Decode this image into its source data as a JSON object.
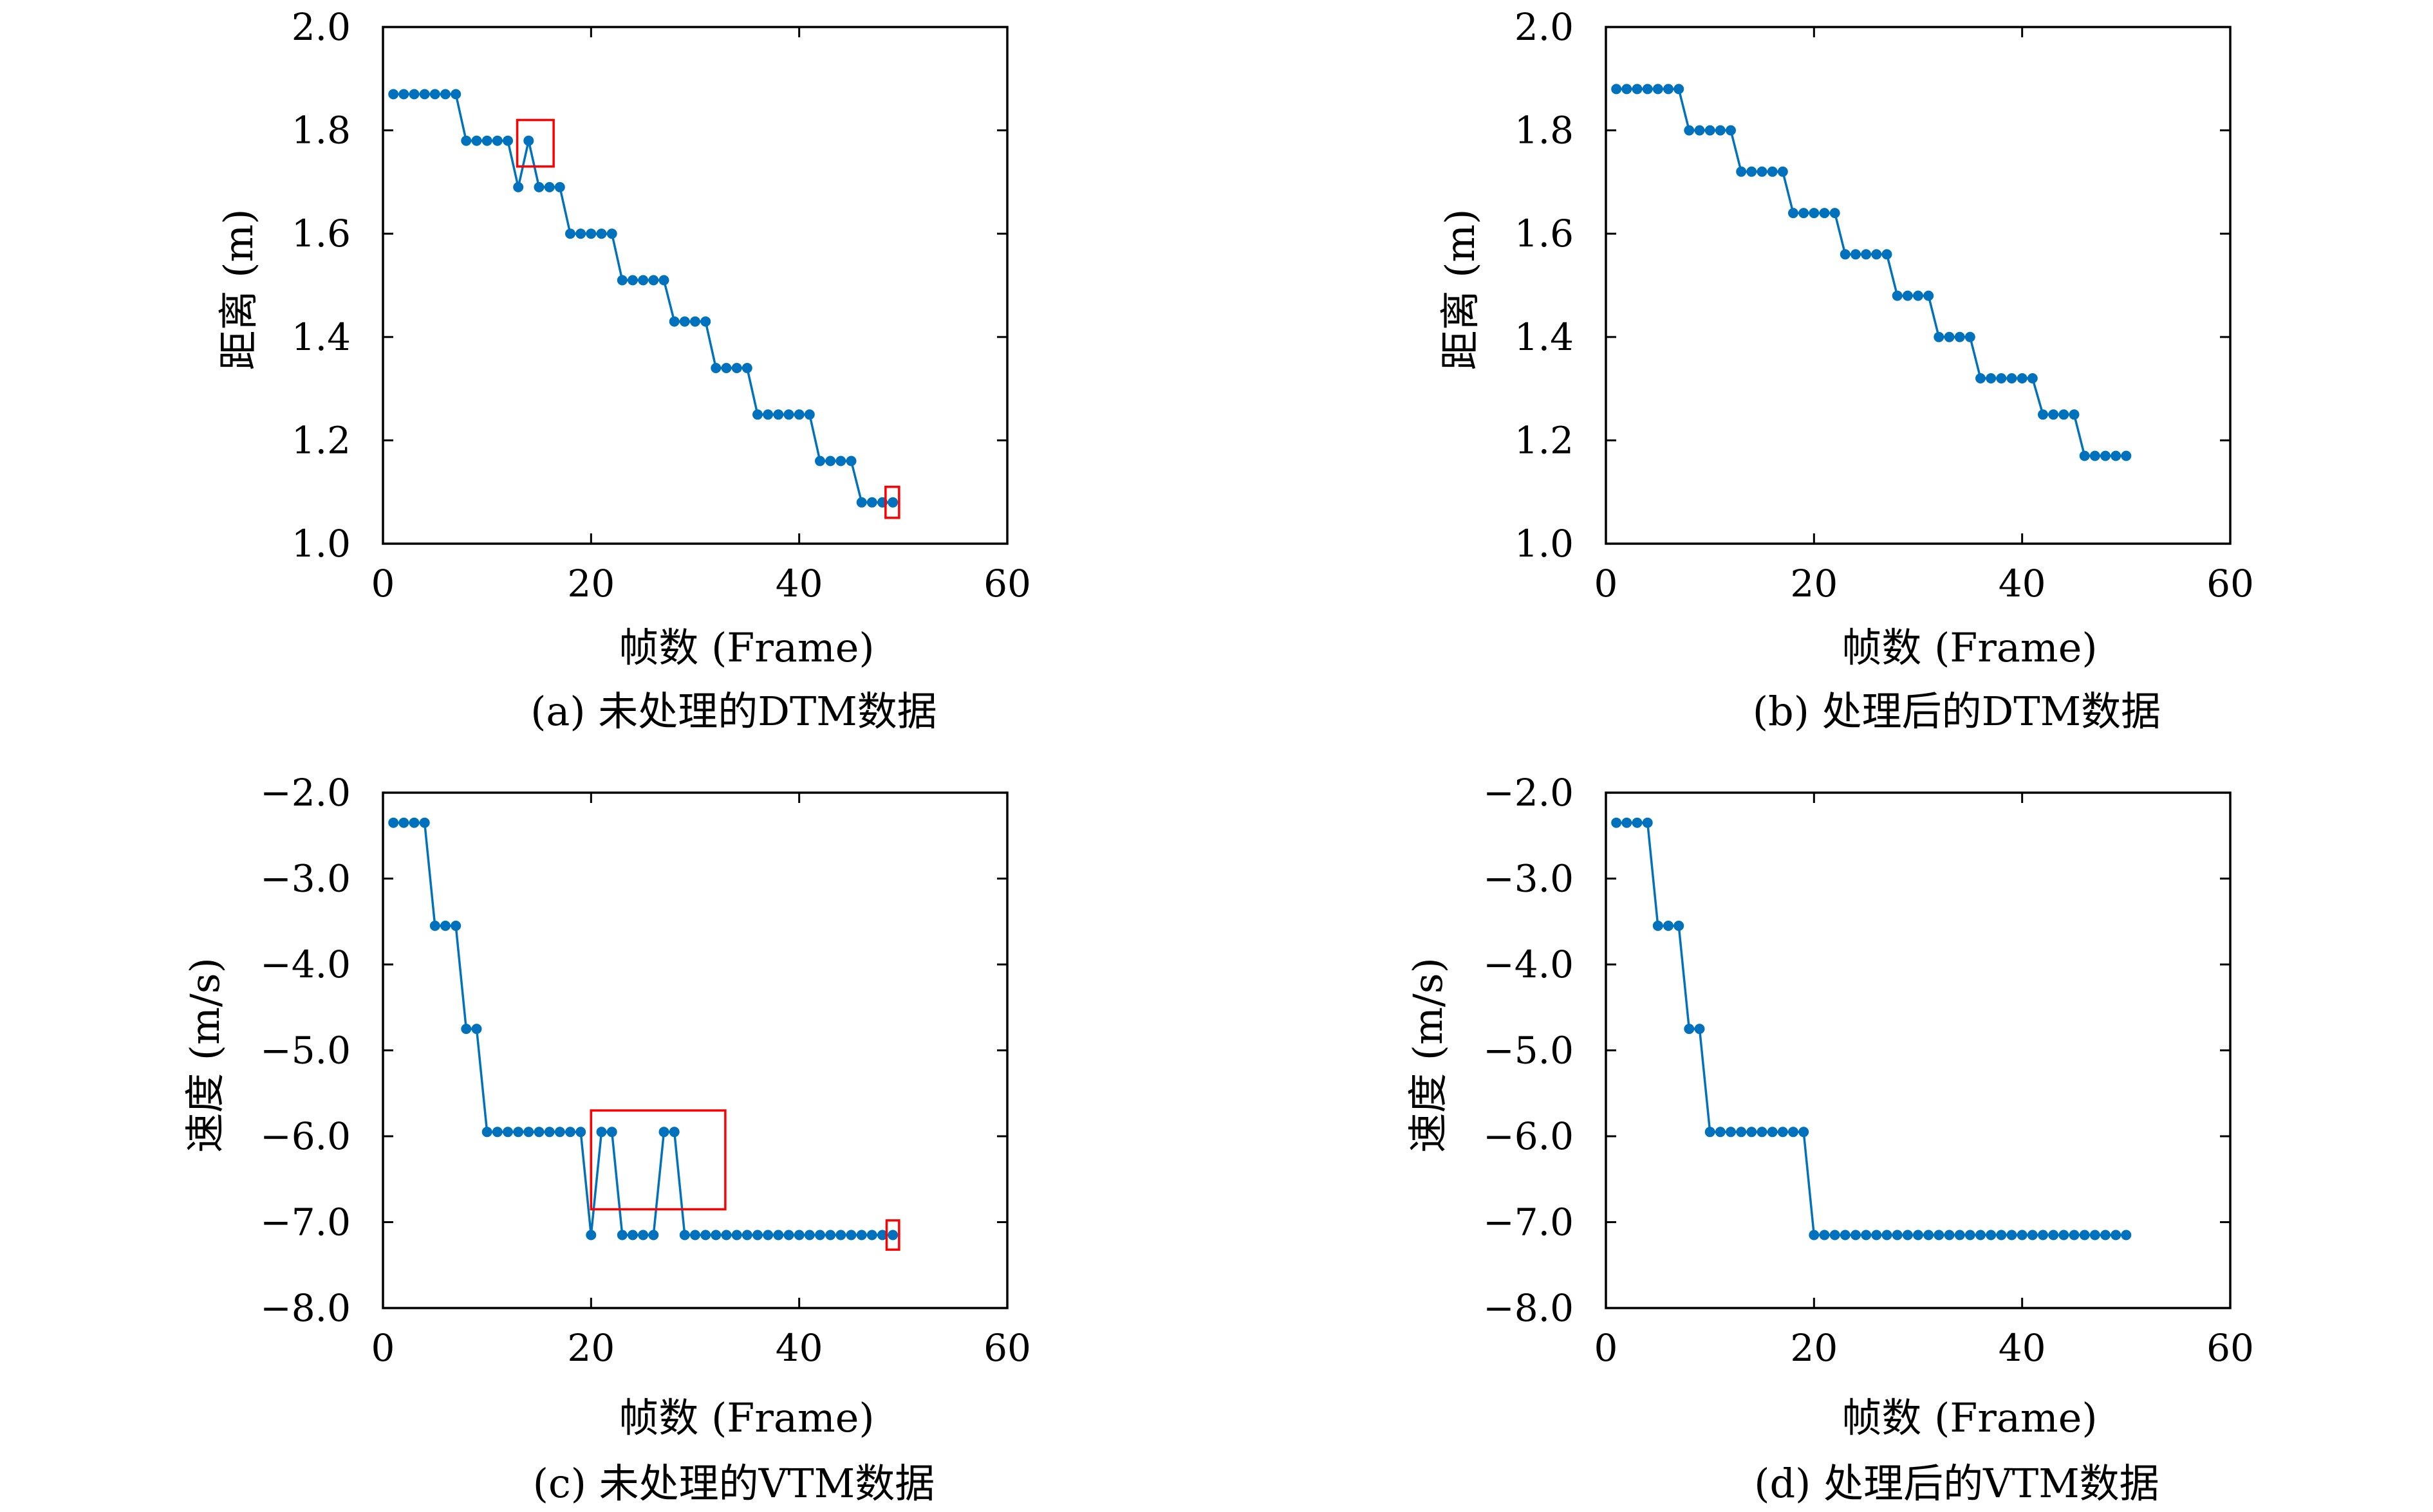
{
  "colors": {
    "series": "#0072BD",
    "highlight": "#FF0000",
    "axis": "#000000"
  },
  "chart_data": [
    {
      "id": "a",
      "type": "line",
      "caption": "(a) 未处理的DTM数据",
      "xlabel": "帧数 (Frame)",
      "ylabel": "距离 (m)",
      "xlim": [
        0,
        60
      ],
      "ylim": [
        1.0,
        2.0
      ],
      "xticks": [
        0,
        20,
        40,
        60
      ],
      "xtick_labels": [
        "0",
        "20",
        "40",
        "60"
      ],
      "yticks": [
        1.0,
        1.2,
        1.4,
        1.6,
        1.8,
        2.0
      ],
      "ytick_labels": [
        "1.0",
        "1.2",
        "1.4",
        "1.6",
        "1.8",
        "2.0"
      ],
      "grid": false,
      "series": [
        {
          "x": [
            1,
            2,
            3,
            4,
            5,
            6,
            7,
            8,
            9,
            10,
            11,
            12,
            13,
            14,
            15,
            16,
            17,
            18,
            19,
            20,
            21,
            22,
            23,
            24,
            25,
            26,
            27,
            28,
            29,
            30,
            31,
            32,
            33,
            34,
            35,
            36,
            37,
            38,
            39,
            40,
            41,
            42,
            43,
            44,
            45,
            46,
            47,
            48,
            49
          ],
          "y": [
            1.87,
            1.87,
            1.87,
            1.87,
            1.87,
            1.87,
            1.87,
            1.78,
            1.78,
            1.78,
            1.78,
            1.78,
            1.69,
            1.78,
            1.69,
            1.69,
            1.69,
            1.6,
            1.6,
            1.6,
            1.6,
            1.6,
            1.51,
            1.51,
            1.51,
            1.51,
            1.51,
            1.43,
            1.43,
            1.43,
            1.43,
            1.34,
            1.34,
            1.34,
            1.34,
            1.25,
            1.25,
            1.25,
            1.25,
            1.25,
            1.25,
            1.16,
            1.16,
            1.16,
            1.16,
            1.08,
            1.08,
            1.08,
            1.08
          ]
        }
      ],
      "highlight_boxes": [
        {
          "x0": 12.9,
          "x1": 16.4,
          "y0": 1.73,
          "y1": 1.82
        },
        {
          "x0": 48.3,
          "x1": 49.6,
          "y0": 1.05,
          "y1": 1.11
        }
      ]
    },
    {
      "id": "b",
      "type": "line",
      "caption": "(b) 处理后的DTM数据",
      "xlabel": "帧数 (Frame)",
      "ylabel": "距离 (m)",
      "xlim": [
        0,
        60
      ],
      "ylim": [
        1.0,
        2.0
      ],
      "xticks": [
        0,
        20,
        40,
        60
      ],
      "xtick_labels": [
        "0",
        "20",
        "40",
        "60"
      ],
      "yticks": [
        1.0,
        1.2,
        1.4,
        1.6,
        1.8,
        2.0
      ],
      "ytick_labels": [
        "1.0",
        "1.2",
        "1.4",
        "1.6",
        "1.8",
        "2.0"
      ],
      "grid": false,
      "series": [
        {
          "x": [
            1,
            2,
            3,
            4,
            5,
            6,
            7,
            8,
            9,
            10,
            11,
            12,
            13,
            14,
            15,
            16,
            17,
            18,
            19,
            20,
            21,
            22,
            23,
            24,
            25,
            26,
            27,
            28,
            29,
            30,
            31,
            32,
            33,
            34,
            35,
            36,
            37,
            38,
            39,
            40,
            41,
            42,
            43,
            44,
            45,
            46,
            47,
            48,
            49,
            50
          ],
          "y": [
            1.88,
            1.88,
            1.88,
            1.88,
            1.88,
            1.88,
            1.88,
            1.8,
            1.8,
            1.8,
            1.8,
            1.8,
            1.72,
            1.72,
            1.72,
            1.72,
            1.72,
            1.64,
            1.64,
            1.64,
            1.64,
            1.64,
            1.56,
            1.56,
            1.56,
            1.56,
            1.56,
            1.48,
            1.48,
            1.48,
            1.48,
            1.4,
            1.4,
            1.4,
            1.4,
            1.32,
            1.32,
            1.32,
            1.32,
            1.32,
            1.32,
            1.25,
            1.25,
            1.25,
            1.25,
            1.17,
            1.17,
            1.17,
            1.17,
            1.17
          ]
        }
      ],
      "highlight_boxes": []
    },
    {
      "id": "c",
      "type": "line",
      "caption": "(c) 未处理的VTM数据",
      "xlabel": "帧数 (Frame)",
      "ylabel": "速度 (m/s)",
      "xlim": [
        0,
        60
      ],
      "ylim": [
        -8.0,
        -2.0
      ],
      "xticks": [
        0,
        20,
        40,
        60
      ],
      "xtick_labels": [
        "0",
        "20",
        "40",
        "60"
      ],
      "yticks": [
        -8.0,
        -7.0,
        -6.0,
        -5.0,
        -4.0,
        -3.0,
        -2.0
      ],
      "ytick_labels": [
        "−8.0",
        "−7.0",
        "−6.0",
        "−5.0",
        "−4.0",
        "−3.0",
        "−2.0"
      ],
      "grid": false,
      "series": [
        {
          "x": [
            1,
            2,
            3,
            4,
            5,
            6,
            7,
            8,
            9,
            10,
            11,
            12,
            13,
            14,
            15,
            16,
            17,
            18,
            19,
            20,
            21,
            22,
            23,
            24,
            25,
            26,
            27,
            28,
            29,
            30,
            31,
            32,
            33,
            34,
            35,
            36,
            37,
            38,
            39,
            40,
            41,
            42,
            43,
            44,
            45,
            46,
            47,
            48,
            49
          ],
          "y": [
            -2.35,
            -2.35,
            -2.35,
            -2.35,
            -3.55,
            -3.55,
            -3.55,
            -4.75,
            -4.75,
            -5.95,
            -5.95,
            -5.95,
            -5.95,
            -5.95,
            -5.95,
            -5.95,
            -5.95,
            -5.95,
            -5.95,
            -7.15,
            -5.95,
            -5.95,
            -7.15,
            -7.15,
            -7.15,
            -7.15,
            -5.95,
            -5.95,
            -7.15,
            -7.15,
            -7.15,
            -7.15,
            -7.15,
            -7.15,
            -7.15,
            -7.15,
            -7.15,
            -7.15,
            -7.15,
            -7.15,
            -7.15,
            -7.15,
            -7.15,
            -7.15,
            -7.15,
            -7.15,
            -7.15,
            -7.15,
            -7.15
          ]
        }
      ],
      "highlight_boxes": [
        {
          "x0": 20.0,
          "x1": 32.9,
          "y0": -6.85,
          "y1": -5.7
        },
        {
          "x0": 48.4,
          "x1": 49.6,
          "y0": -7.32,
          "y1": -6.98
        }
      ]
    },
    {
      "id": "d",
      "type": "line",
      "caption": "(d) 处理后的VTM数据",
      "xlabel": "帧数 (Frame)",
      "ylabel": "速度 (m/s)",
      "xlim": [
        0,
        60
      ],
      "ylim": [
        -8.0,
        -2.0
      ],
      "xticks": [
        0,
        20,
        40,
        60
      ],
      "xtick_labels": [
        "0",
        "20",
        "40",
        "60"
      ],
      "yticks": [
        -8.0,
        -7.0,
        -6.0,
        -5.0,
        -4.0,
        -3.0,
        -2.0
      ],
      "ytick_labels": [
        "−8.0",
        "−7.0",
        "−6.0",
        "−5.0",
        "−4.0",
        "−3.0",
        "−2.0"
      ],
      "grid": false,
      "series": [
        {
          "x": [
            1,
            2,
            3,
            4,
            5,
            6,
            7,
            8,
            9,
            10,
            11,
            12,
            13,
            14,
            15,
            16,
            17,
            18,
            19,
            20,
            21,
            22,
            23,
            24,
            25,
            26,
            27,
            28,
            29,
            30,
            31,
            32,
            33,
            34,
            35,
            36,
            37,
            38,
            39,
            40,
            41,
            42,
            43,
            44,
            45,
            46,
            47,
            48,
            49,
            50
          ],
          "y": [
            -2.35,
            -2.35,
            -2.35,
            -2.35,
            -3.55,
            -3.55,
            -3.55,
            -4.75,
            -4.75,
            -5.95,
            -5.95,
            -5.95,
            -5.95,
            -5.95,
            -5.95,
            -5.95,
            -5.95,
            -5.95,
            -5.95,
            -7.15,
            -7.15,
            -7.15,
            -7.15,
            -7.15,
            -7.15,
            -7.15,
            -7.15,
            -7.15,
            -7.15,
            -7.15,
            -7.15,
            -7.15,
            -7.15,
            -7.15,
            -7.15,
            -7.15,
            -7.15,
            -7.15,
            -7.15,
            -7.15,
            -7.15,
            -7.15,
            -7.15,
            -7.15,
            -7.15,
            -7.15,
            -7.15,
            -7.15,
            -7.15,
            -7.15
          ]
        }
      ],
      "highlight_boxes": []
    }
  ]
}
